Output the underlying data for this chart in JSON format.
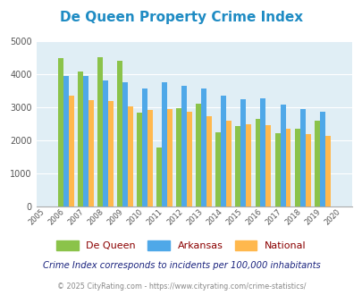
{
  "title": "De Queen Property Crime Index",
  "years": [
    2005,
    2006,
    2007,
    2008,
    2009,
    2010,
    2011,
    2012,
    2013,
    2014,
    2015,
    2016,
    2017,
    2018,
    2019,
    2020
  ],
  "dequeen": [
    null,
    4480,
    4080,
    4530,
    4400,
    2850,
    1790,
    2980,
    3100,
    2250,
    2430,
    2650,
    2220,
    2350,
    2600,
    null
  ],
  "arkansas": [
    null,
    3960,
    3960,
    3820,
    3760,
    3560,
    3760,
    3650,
    3580,
    3350,
    3240,
    3280,
    3080,
    2960,
    2860,
    null
  ],
  "national": [
    null,
    3350,
    3230,
    3200,
    3030,
    2920,
    2940,
    2870,
    2730,
    2600,
    2490,
    2460,
    2360,
    2200,
    2130,
    null
  ],
  "dequeen_color": "#8BC34A",
  "arkansas_color": "#4FA8E8",
  "national_color": "#FFB84D",
  "bg_color": "#E0EEF5",
  "ylim": [
    0,
    5000
  ],
  "yticks": [
    0,
    1000,
    2000,
    3000,
    4000,
    5000
  ],
  "subtitle": "Crime Index corresponds to incidents per 100,000 inhabitants",
  "footer": "© 2025 CityRating.com - https://www.cityrating.com/crime-statistics/",
  "legend_labels": [
    "De Queen",
    "Arkansas",
    "National"
  ],
  "title_color": "#1E8BC3",
  "subtitle_color": "#1a237e",
  "footer_color": "#888888",
  "legend_label_color": "#8B0000"
}
